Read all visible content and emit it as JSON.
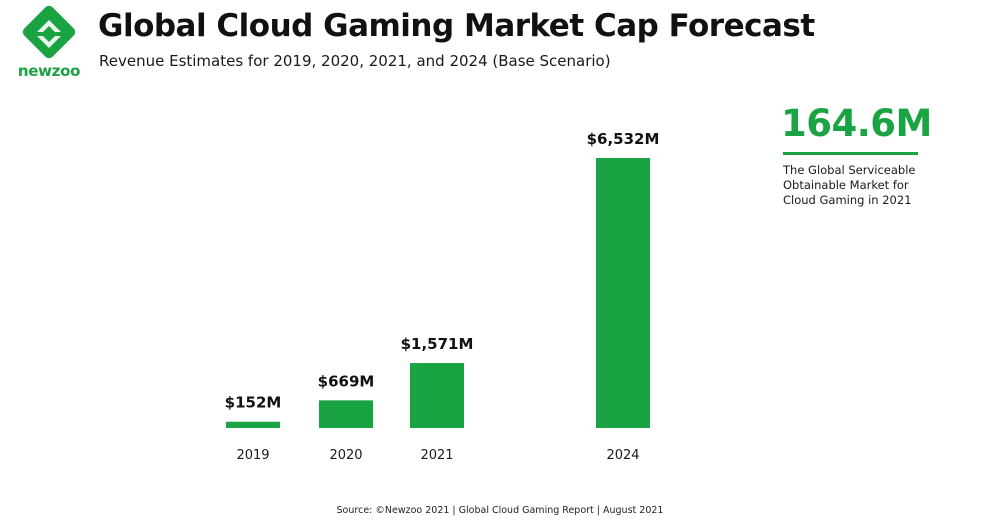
{
  "brand": {
    "name": "newzoo",
    "color": "#1aa342"
  },
  "title": "Global Cloud Gaming Market Cap Forecast",
  "subtitle": "Revenue Estimates for 2019, 2020, 2021, and 2024 (Base Scenario)",
  "callout": {
    "value": "164.6M",
    "description": "The Global Serviceable Obtainable Market for Cloud Gaming in 2021"
  },
  "source": "Source: ©Newzoo 2021 | Global Cloud Gaming Report | August 2021",
  "chart_data": {
    "type": "bar",
    "categories": [
      "2019",
      "2020",
      "2021",
      "2024"
    ],
    "values": [
      152,
      669,
      1571,
      6532
    ],
    "data_labels": [
      "$152M",
      "$669M",
      "$1,571M",
      "$6,532M"
    ],
    "unit": "$M",
    "bar_color": "#1aa342",
    "ylim": [
      0,
      6532
    ],
    "title": "Global Cloud Gaming Market Cap Forecast",
    "xlabel": "",
    "ylabel": "",
    "grid": false,
    "legend": "none"
  }
}
